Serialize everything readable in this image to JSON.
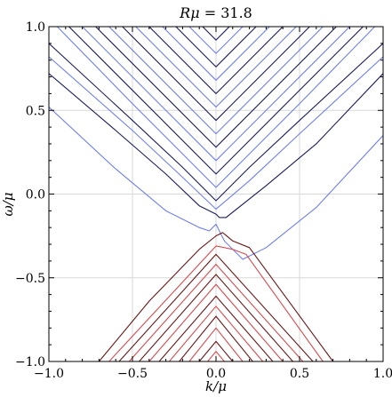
{
  "chart_data": {
    "type": "line",
    "title": "Rμ = 31.8",
    "title_parts": {
      "symbol": "Rμ",
      "equals": " = ",
      "value": "31.8"
    },
    "xlabel": "k/μ",
    "ylabel": "ω/μ",
    "xlim": [
      -1.0,
      1.0
    ],
    "ylim": [
      -1.0,
      1.0
    ],
    "xticks": [
      -1.0,
      -0.5,
      0.0,
      0.5,
      1.0
    ],
    "xtick_labels": [
      "−1.0",
      "−0.5",
      "0.0",
      "0.5",
      "1.0"
    ],
    "yticks": [
      -1.0,
      -0.5,
      0.0,
      0.5,
      1.0
    ],
    "ytick_labels": [
      "−1.0",
      "−0.5",
      "0.0",
      "0.5",
      "1.0"
    ],
    "grid": true,
    "colors": {
      "upper_blue": "#6f7ff0",
      "upper_navy": "#1a1c5a",
      "lower_red": "#d9494d",
      "lower_maroon": "#6b1717",
      "grid": "#d8d8d8",
      "frame": "#000000"
    },
    "series": [
      {
        "band": "upper",
        "color": "blue",
        "points": [
          [
            -1.0,
            0.52
          ],
          [
            -0.6,
            0.15
          ],
          [
            -0.3,
            -0.1
          ],
          [
            -0.1,
            -0.2
          ],
          [
            -0.04,
            -0.22
          ],
          [
            0.0,
            -0.18
          ],
          [
            0.05,
            -0.28
          ],
          [
            0.16,
            -0.39
          ],
          [
            0.3,
            -0.32
          ],
          [
            0.6,
            -0.08
          ],
          [
            1.0,
            0.35
          ]
        ]
      },
      {
        "band": "upper",
        "color": "navy",
        "points": [
          [
            -1.0,
            0.72
          ],
          [
            -0.6,
            0.38
          ],
          [
            -0.3,
            0.12
          ],
          [
            -0.1,
            -0.07
          ],
          [
            0.0,
            -0.12
          ],
          [
            0.02,
            -0.14
          ],
          [
            0.06,
            -0.14
          ],
          [
            0.3,
            0.05
          ],
          [
            0.6,
            0.3
          ],
          [
            1.0,
            0.72
          ]
        ]
      },
      {
        "band": "upper",
        "color": "blue",
        "points": [
          [
            -1.0,
            0.82
          ],
          [
            -0.5,
            0.38
          ],
          [
            -0.2,
            0.1
          ],
          [
            0.0,
            -0.09
          ],
          [
            0.2,
            0.08
          ],
          [
            0.5,
            0.36
          ],
          [
            1.0,
            0.82
          ]
        ]
      },
      {
        "band": "upper",
        "color": "navy",
        "points": [
          [
            -1.0,
            0.9
          ],
          [
            -0.5,
            0.44
          ],
          [
            -0.2,
            0.16
          ],
          [
            0.0,
            -0.04
          ],
          [
            0.2,
            0.16
          ],
          [
            0.5,
            0.44
          ],
          [
            1.0,
            0.9
          ]
        ]
      },
      {
        "band": "upper",
        "color": "blue",
        "points": [
          [
            -0.95,
            1.0
          ],
          [
            -0.5,
            0.54
          ],
          [
            -0.2,
            0.24
          ],
          [
            0.0,
            0.04
          ],
          [
            0.2,
            0.24
          ],
          [
            0.5,
            0.54
          ],
          [
            0.95,
            1.0
          ]
        ]
      },
      {
        "band": "upper",
        "color": "navy",
        "points": [
          [
            -0.88,
            1.0
          ],
          [
            0.0,
            0.12
          ],
          [
            0.88,
            1.0
          ]
        ]
      },
      {
        "band": "upper",
        "color": "blue",
        "points": [
          [
            -0.8,
            1.0
          ],
          [
            0.0,
            0.2
          ],
          [
            0.8,
            1.0
          ]
        ]
      },
      {
        "band": "upper",
        "color": "navy",
        "points": [
          [
            -0.72,
            1.0
          ],
          [
            0.0,
            0.28
          ],
          [
            0.72,
            1.0
          ]
        ]
      },
      {
        "band": "upper",
        "color": "blue",
        "points": [
          [
            -0.64,
            1.0
          ],
          [
            0.0,
            0.36
          ],
          [
            0.64,
            1.0
          ]
        ]
      },
      {
        "band": "upper",
        "color": "navy",
        "points": [
          [
            -0.56,
            1.0
          ],
          [
            0.0,
            0.44
          ],
          [
            0.56,
            1.0
          ]
        ]
      },
      {
        "band": "upper",
        "color": "blue",
        "points": [
          [
            -0.48,
            1.0
          ],
          [
            0.0,
            0.52
          ],
          [
            0.48,
            1.0
          ]
        ]
      },
      {
        "band": "upper",
        "color": "navy",
        "points": [
          [
            -0.4,
            1.0
          ],
          [
            0.0,
            0.6
          ],
          [
            0.4,
            1.0
          ]
        ]
      },
      {
        "band": "upper",
        "color": "blue",
        "points": [
          [
            -0.32,
            1.0
          ],
          [
            0.0,
            0.68
          ],
          [
            0.32,
            1.0
          ]
        ]
      },
      {
        "band": "upper",
        "color": "navy",
        "points": [
          [
            -0.24,
            1.0
          ],
          [
            0.0,
            0.76
          ],
          [
            0.24,
            1.0
          ]
        ]
      },
      {
        "band": "upper",
        "color": "blue",
        "points": [
          [
            -0.16,
            1.0
          ],
          [
            0.0,
            0.84
          ],
          [
            0.16,
            1.0
          ]
        ]
      },
      {
        "band": "upper",
        "color": "navy",
        "points": [
          [
            -0.08,
            1.0
          ],
          [
            0.0,
            0.92
          ],
          [
            0.08,
            1.0
          ]
        ]
      },
      {
        "band": "lower",
        "color": "maroon",
        "points": [
          [
            -0.7,
            -1.0
          ],
          [
            -0.4,
            -0.64
          ],
          [
            -0.1,
            -0.33
          ],
          [
            0.0,
            -0.25
          ],
          [
            0.04,
            -0.23
          ],
          [
            0.1,
            -0.28
          ],
          [
            0.2,
            -0.32
          ],
          [
            0.7,
            -1.0
          ]
        ]
      },
      {
        "band": "lower",
        "color": "red",
        "points": [
          [
            -0.64,
            -1.0
          ],
          [
            0.0,
            -0.31
          ],
          [
            0.1,
            -0.33
          ],
          [
            0.18,
            -0.36
          ],
          [
            0.64,
            -1.0
          ]
        ]
      },
      {
        "band": "lower",
        "color": "maroon",
        "points": [
          [
            -0.58,
            -1.0
          ],
          [
            0.0,
            -0.36
          ],
          [
            0.58,
            -1.0
          ]
        ]
      },
      {
        "band": "lower",
        "color": "red",
        "points": [
          [
            -0.52,
            -1.0
          ],
          [
            0.0,
            -0.42
          ],
          [
            0.52,
            -1.0
          ]
        ]
      },
      {
        "band": "lower",
        "color": "maroon",
        "points": [
          [
            -0.46,
            -1.0
          ],
          [
            0.0,
            -0.48
          ],
          [
            0.46,
            -1.0
          ]
        ]
      },
      {
        "band": "lower",
        "color": "red",
        "points": [
          [
            -0.4,
            -1.0
          ],
          [
            0.0,
            -0.54
          ],
          [
            0.4,
            -1.0
          ]
        ]
      },
      {
        "band": "lower",
        "color": "maroon",
        "points": [
          [
            -0.34,
            -1.0
          ],
          [
            0.0,
            -0.61
          ],
          [
            0.34,
            -1.0
          ]
        ]
      },
      {
        "band": "lower",
        "color": "red",
        "points": [
          [
            -0.28,
            -1.0
          ],
          [
            0.0,
            -0.67
          ],
          [
            0.28,
            -1.0
          ]
        ]
      },
      {
        "band": "lower",
        "color": "maroon",
        "points": [
          [
            -0.22,
            -1.0
          ],
          [
            0.0,
            -0.73
          ],
          [
            0.22,
            -1.0
          ]
        ]
      },
      {
        "band": "lower",
        "color": "red",
        "points": [
          [
            -0.16,
            -1.0
          ],
          [
            0.0,
            -0.8
          ],
          [
            0.16,
            -1.0
          ]
        ]
      },
      {
        "band": "lower",
        "color": "maroon",
        "points": [
          [
            -0.1,
            -1.0
          ],
          [
            0.0,
            -0.88
          ],
          [
            0.1,
            -1.0
          ]
        ]
      },
      {
        "band": "lower",
        "color": "red",
        "points": [
          [
            -0.05,
            -1.0
          ],
          [
            0.0,
            -0.94
          ],
          [
            0.05,
            -1.0
          ]
        ]
      }
    ]
  }
}
